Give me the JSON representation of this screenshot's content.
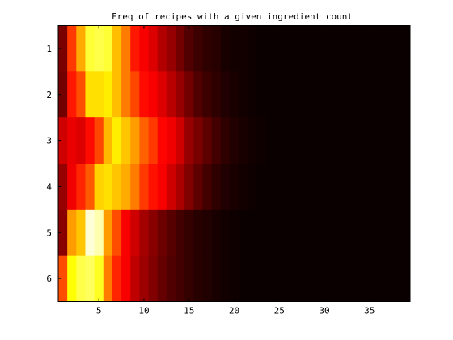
{
  "chart_data": {
    "type": "heatmap",
    "title": "Freq of recipes with a given ingredient count",
    "xlabel": "",
    "ylabel": "",
    "colormap": "hot",
    "xlim": [
      0.5,
      39.5
    ],
    "ylim": [
      0.5,
      6.5
    ],
    "x_ticks": [
      5,
      10,
      15,
      20,
      25,
      30,
      35
    ],
    "y_ticks": [
      1,
      2,
      3,
      4,
      5,
      6
    ],
    "rows": [
      1,
      2,
      3,
      4,
      5,
      6
    ],
    "columns_start": 1,
    "values": [
      [
        0.16,
        0.45,
        0.62,
        0.8,
        0.82,
        0.8,
        0.65,
        0.55,
        0.4,
        0.34,
        0.3,
        0.24,
        0.2,
        0.15,
        0.1,
        0.07,
        0.05,
        0.04,
        0.02,
        0.01,
        0.01,
        0.005,
        0,
        0,
        0,
        0,
        0,
        0,
        0,
        0,
        0,
        0,
        0,
        0,
        0,
        0,
        0,
        0,
        0
      ],
      [
        0.15,
        0.4,
        0.48,
        0.7,
        0.7,
        0.72,
        0.65,
        0.55,
        0.47,
        0.38,
        0.34,
        0.3,
        0.25,
        0.2,
        0.15,
        0.1,
        0.07,
        0.05,
        0.03,
        0.02,
        0.01,
        0.005,
        0,
        0,
        0,
        0,
        0,
        0,
        0,
        0,
        0,
        0,
        0,
        0,
        0,
        0,
        0,
        0,
        0
      ],
      [
        0.28,
        0.32,
        0.3,
        0.38,
        0.47,
        0.64,
        0.72,
        0.66,
        0.6,
        0.51,
        0.45,
        0.37,
        0.33,
        0.28,
        0.2,
        0.16,
        0.12,
        0.08,
        0.05,
        0.03,
        0.02,
        0.01,
        0.005,
        0,
        0,
        0,
        0,
        0,
        0,
        0,
        0,
        0,
        0,
        0,
        0,
        0,
        0,
        0,
        0
      ],
      [
        0.2,
        0.33,
        0.42,
        0.5,
        0.68,
        0.7,
        0.66,
        0.62,
        0.55,
        0.45,
        0.39,
        0.34,
        0.28,
        0.23,
        0.17,
        0.12,
        0.08,
        0.05,
        0.03,
        0.02,
        0.01,
        0.005,
        0,
        0,
        0,
        0,
        0,
        0,
        0,
        0,
        0,
        0,
        0,
        0,
        0,
        0,
        0,
        0,
        0
      ],
      [
        0.18,
        0.6,
        0.66,
        0.96,
        0.92,
        0.6,
        0.48,
        0.34,
        0.28,
        0.22,
        0.18,
        0.14,
        0.11,
        0.08,
        0.06,
        0.04,
        0.03,
        0.02,
        0.01,
        0.005,
        0,
        0,
        0,
        0,
        0,
        0,
        0,
        0,
        0,
        0,
        0,
        0,
        0,
        0,
        0,
        0,
        0,
        0,
        0
      ],
      [
        0.48,
        0.75,
        0.82,
        0.84,
        0.78,
        0.55,
        0.42,
        0.34,
        0.26,
        0.21,
        0.17,
        0.13,
        0.1,
        0.08,
        0.06,
        0.04,
        0.03,
        0.02,
        0.01,
        0.005,
        0,
        0,
        0,
        0,
        0,
        0,
        0,
        0,
        0,
        0,
        0,
        0,
        0,
        0,
        0,
        0,
        0,
        0,
        0
      ]
    ],
    "grid": false,
    "legend": "none"
  }
}
